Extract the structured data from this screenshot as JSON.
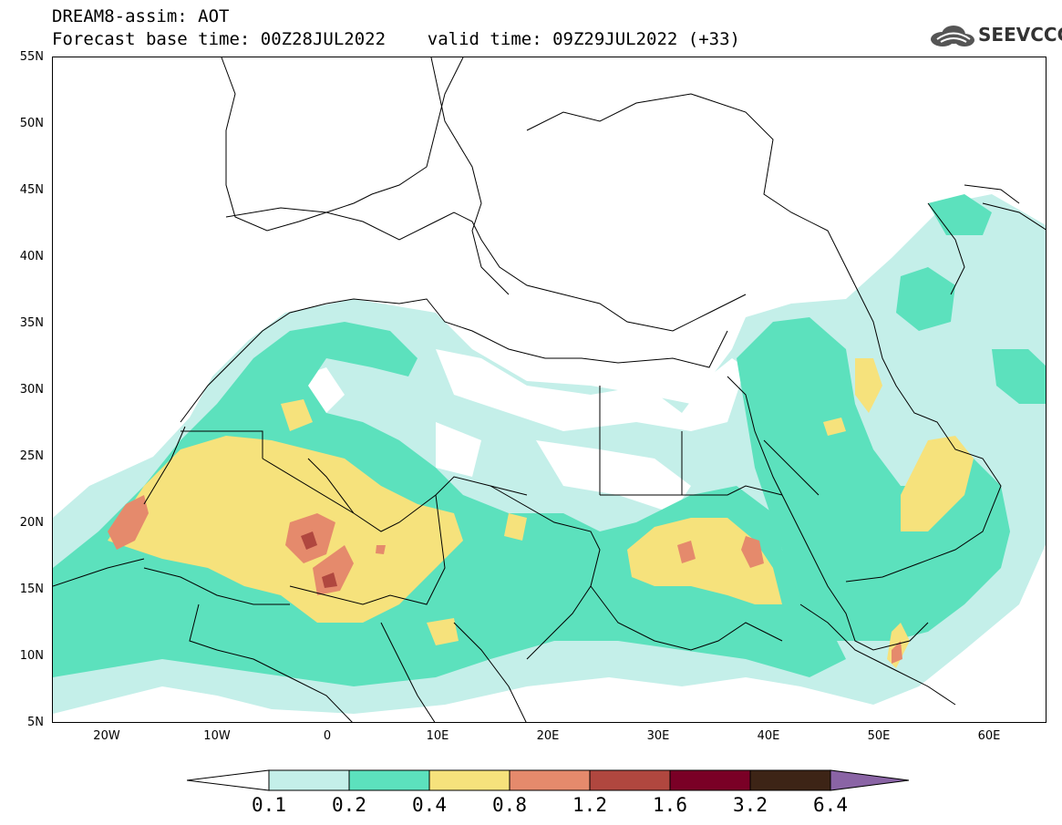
{
  "header": {
    "title": "DREAM8-assim: AOT",
    "forecast_line": "Forecast base time: 00Z28JUL2022    valid time: 09Z29JUL2022 (+33)",
    "logo_text": "SEEVCCC"
  },
  "map": {
    "region": "North Africa, Middle East and Europe",
    "extent": {
      "lon": [
        -25,
        65
      ],
      "lat": [
        5,
        55
      ]
    },
    "latitude_labels": [
      "55N",
      "50N",
      "45N",
      "40N",
      "35N",
      "30N",
      "25N",
      "20N",
      "15N",
      "10N",
      "5N"
    ],
    "longitude_labels": [
      "20W",
      "10W",
      "0",
      "10E",
      "20E",
      "30E",
      "40E",
      "50E",
      "60E"
    ],
    "variable": "Aerosol Optical Thickness"
  },
  "colorbar": {
    "labels": [
      "0.1",
      "0.2",
      "0.4",
      "0.8",
      "1.2",
      "1.6",
      "3.2",
      "6.4"
    ],
    "colors": [
      "#ffffff",
      "#c4efe9",
      "#5ce1bd",
      "#f6e27c",
      "#e58a6c",
      "#b0473f",
      "#7a0026",
      "#3d2416",
      "#8a64a5"
    ]
  }
}
